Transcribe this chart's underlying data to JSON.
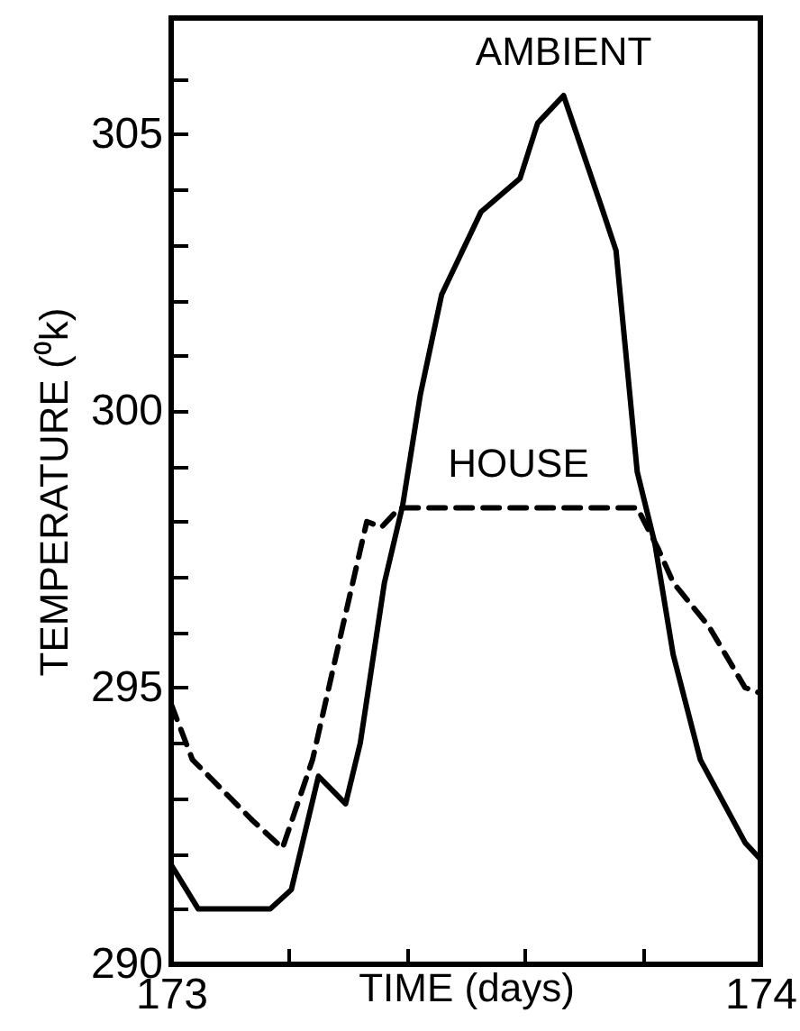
{
  "chart_data": {
    "type": "line",
    "xlabel": "TIME (days)",
    "ylabel": "TEMPERATURE (⁰k)",
    "xlim": [
      173,
      174
    ],
    "ylim": [
      290,
      307.1
    ],
    "xticks": [
      173,
      {
        "value": 173.2,
        "label": null
      },
      {
        "value": 173.4,
        "label": null
      },
      {
        "value": 173.6,
        "label": null
      },
      {
        "value": 173.8,
        "label": null
      },
      174
    ],
    "yticks": [
      290,
      {
        "value": 291,
        "label": null
      },
      {
        "value": 292,
        "label": null
      },
      {
        "value": 293,
        "label": null
      },
      {
        "value": 294,
        "label": null
      },
      295,
      {
        "value": 296,
        "label": null
      },
      {
        "value": 297,
        "label": null
      },
      {
        "value": 298,
        "label": null
      },
      {
        "value": 299,
        "label": null
      },
      300,
      {
        "value": 301,
        "label": null
      },
      {
        "value": 302,
        "label": null
      },
      {
        "value": 303,
        "label": null
      },
      {
        "value": 304,
        "label": null
      },
      305,
      {
        "value": 306,
        "label": null
      }
    ],
    "grid": false,
    "series": [
      {
        "name": "AMBIENT",
        "color": "#000000",
        "line_style": "solid",
        "x": [
          173.0,
          173.046,
          173.168,
          173.204,
          173.25,
          173.296,
          173.321,
          173.362,
          173.393,
          173.423,
          173.459,
          173.526,
          173.592,
          173.622,
          173.666,
          173.73,
          173.755,
          173.791,
          173.821,
          173.852,
          173.898,
          173.974,
          174.0
        ],
        "values": [
          291.8,
          291.0,
          291.0,
          291.35,
          293.4,
          292.9,
          294.0,
          296.9,
          298.3,
          300.3,
          302.1,
          303.6,
          304.2,
          305.2,
          305.7,
          303.7,
          302.9,
          298.9,
          297.6,
          295.6,
          293.7,
          292.2,
          291.9
        ]
      },
      {
        "name": "HOUSE",
        "color": "#000000",
        "line_style": "dashed",
        "x": [
          173.0,
          173.036,
          173.138,
          173.189,
          173.24,
          173.291,
          173.332,
          173.357,
          173.388,
          173.791,
          173.827,
          173.852,
          173.913,
          173.974,
          174.0
        ],
        "values": [
          294.7,
          293.7,
          292.6,
          292.1,
          293.7,
          296.1,
          298.0,
          297.9,
          298.25,
          298.25,
          297.5,
          296.9,
          296.1,
          295.0,
          294.9
        ]
      }
    ]
  }
}
